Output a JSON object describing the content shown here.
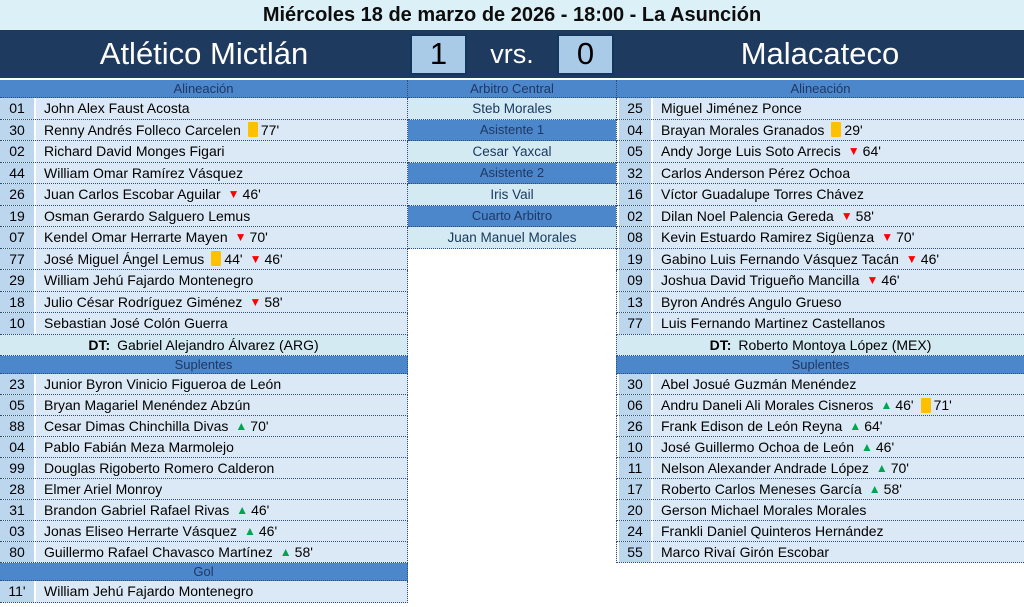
{
  "title": "Miércoles 18 de marzo de 2026 - 18:00 - La Asunción",
  "scoreboard": {
    "home_team": "Atlético Mictlán",
    "away_team": "Malacateco",
    "home_score": "1",
    "away_score": "0",
    "versus_label": "vrs."
  },
  "sections": {
    "lineup_label": "Alineación",
    "substitutes_label": "Suplentes",
    "goal_label": "Gol",
    "dt_label": "DT:"
  },
  "officials": [
    {
      "role": "Arbitro Central",
      "name": "Steb Morales"
    },
    {
      "role": "Asistente 1",
      "name": "Cesar Yaxcal"
    },
    {
      "role": "Asistente 2",
      "name": "Iris Vail"
    },
    {
      "role": "Cuarto Arbitro",
      "name": "Juan Manuel Morales"
    }
  ],
  "home": {
    "lineup": [
      {
        "num": "01",
        "name": "John Alex Faust Acosta",
        "events": []
      },
      {
        "num": "30",
        "name": "Renny Andrés Folleco Carcelen",
        "events": [
          {
            "type": "yellow-card",
            "minute": "77'"
          }
        ]
      },
      {
        "num": "02",
        "name": "Richard David Monges Figari",
        "events": []
      },
      {
        "num": "44",
        "name": "William Omar Ramírez Vásquez",
        "events": []
      },
      {
        "num": "26",
        "name": "Juan Carlos Escobar Aguilar",
        "events": [
          {
            "type": "sub-out",
            "minute": "46'"
          }
        ]
      },
      {
        "num": "19",
        "name": "Osman Gerardo Salguero Lemus",
        "events": []
      },
      {
        "num": "07",
        "name": "Kendel Omar Herrarte Mayen",
        "events": [
          {
            "type": "sub-out",
            "minute": "70'"
          }
        ]
      },
      {
        "num": "77",
        "name": "José Miguel Ángel Lemus",
        "events": [
          {
            "type": "yellow-card",
            "minute": "44'"
          },
          {
            "type": "sub-out",
            "minute": "46'"
          }
        ]
      },
      {
        "num": "29",
        "name": "William Jehú Fajardo Montenegro",
        "events": []
      },
      {
        "num": "18",
        "name": "Julio César Rodríguez Giménez",
        "events": [
          {
            "type": "sub-out",
            "minute": "58'"
          }
        ]
      },
      {
        "num": "10",
        "name": "Sebastian José Colón Guerra",
        "events": []
      }
    ],
    "coach": {
      "name": "Gabriel Alejandro Álvarez (ARG)"
    },
    "substitutes": [
      {
        "num": "23",
        "name": "Junior Byron Vinicio Figueroa de León",
        "events": []
      },
      {
        "num": "05",
        "name": "Bryan Magariel Menéndez Abzún",
        "events": []
      },
      {
        "num": "88",
        "name": "Cesar Dimas Chinchilla Divas",
        "events": [
          {
            "type": "sub-in",
            "minute": "70'"
          }
        ]
      },
      {
        "num": "04",
        "name": "Pablo Fabián Meza Marmolejo",
        "events": []
      },
      {
        "num": "99",
        "name": "Douglas Rigoberto Romero Calderon",
        "events": []
      },
      {
        "num": "28",
        "name": "Elmer Ariel Monroy",
        "events": []
      },
      {
        "num": "31",
        "name": "Brandon Gabriel Rafael Rivas",
        "events": [
          {
            "type": "sub-in",
            "minute": "46'"
          }
        ]
      },
      {
        "num": "03",
        "name": "Jonas Eliseo Herrarte Vásquez",
        "events": [
          {
            "type": "sub-in",
            "minute": "46'"
          }
        ]
      },
      {
        "num": "80",
        "name": "Guillermo Rafael Chavasco Martínez",
        "events": [
          {
            "type": "sub-in",
            "minute": "58'"
          }
        ]
      }
    ],
    "goals": [
      {
        "minute": "11'",
        "name": "William Jehú Fajardo Montenegro"
      }
    ]
  },
  "away": {
    "lineup": [
      {
        "num": "25",
        "name": "Miguel Jiménez Ponce",
        "events": []
      },
      {
        "num": "04",
        "name": "Brayan Morales Granados",
        "events": [
          {
            "type": "yellow-card",
            "minute": "29'"
          }
        ]
      },
      {
        "num": "05",
        "name": "Andy Jorge Luis Soto Arrecis",
        "events": [
          {
            "type": "sub-out",
            "minute": "64'"
          }
        ]
      },
      {
        "num": "32",
        "name": "Carlos Anderson Pérez Ochoa",
        "events": []
      },
      {
        "num": "16",
        "name": "Víctor Guadalupe Torres Chávez",
        "events": []
      },
      {
        "num": "02",
        "name": "Dilan Noel Palencia Gereda",
        "events": [
          {
            "type": "sub-out",
            "minute": "58'"
          }
        ]
      },
      {
        "num": "08",
        "name": "Kevin Estuardo Ramirez Sigüenza",
        "events": [
          {
            "type": "sub-out",
            "minute": "70'"
          }
        ]
      },
      {
        "num": "19",
        "name": "Gabino Luis Fernando Vásquez Tacán",
        "events": [
          {
            "type": "sub-out",
            "minute": "46'"
          }
        ]
      },
      {
        "num": "09",
        "name": "Joshua David Trigueño Mancilla",
        "events": [
          {
            "type": "sub-out",
            "minute": "46'"
          }
        ]
      },
      {
        "num": "13",
        "name": "Byron Andrés Angulo Grueso",
        "events": []
      },
      {
        "num": "77",
        "name": "Luis Fernando Martinez Castellanos",
        "events": []
      }
    ],
    "coach": {
      "name": "Roberto Montoya López (MEX)"
    },
    "substitutes": [
      {
        "num": "30",
        "name": "Abel Josué Guzmán Menéndez",
        "events": []
      },
      {
        "num": "06",
        "name": "Andru Daneli Ali Morales Cisneros",
        "events": [
          {
            "type": "sub-in",
            "minute": "46'"
          },
          {
            "type": "yellow-card",
            "minute": "71'"
          }
        ]
      },
      {
        "num": "26",
        "name": "Frank Edison de León Reyna",
        "events": [
          {
            "type": "sub-in",
            "minute": "64'"
          }
        ]
      },
      {
        "num": "10",
        "name": "José Guillermo Ochoa de León",
        "events": [
          {
            "type": "sub-in",
            "minute": "46'"
          }
        ]
      },
      {
        "num": "11",
        "name": "Nelson Alexander Andrade López",
        "events": [
          {
            "type": "sub-in",
            "minute": "70'"
          }
        ]
      },
      {
        "num": "17",
        "name": "Roberto Carlos Meneses García",
        "events": [
          {
            "type": "sub-in",
            "minute": "58'"
          }
        ]
      },
      {
        "num": "20",
        "name": "Gerson Michael Morales Morales",
        "events": []
      },
      {
        "num": "24",
        "name": "Frankli Daniel Quinteros Hernández",
        "events": []
      },
      {
        "num": "55",
        "name": "Marco Rivaí Girón Escobar",
        "events": []
      }
    ]
  },
  "icons": {
    "yellow_card": "yellow-card-icon",
    "sub_in": "sub-in-icon",
    "sub_out": "sub-out-icon"
  },
  "colors": {
    "navy_bar": "#1f3a5f",
    "header_blue": "#4c86cb",
    "number_cell": "#bcd6ee",
    "name_cell": "#dbe9f6",
    "cyan_cell": "#d4eaf2",
    "title_background": "#dcf0f8",
    "score_box": "#a9cbe8",
    "yellow_card": "#ffc000",
    "sub_out_red": "#ff0000",
    "sub_in_green": "#00a551"
  }
}
